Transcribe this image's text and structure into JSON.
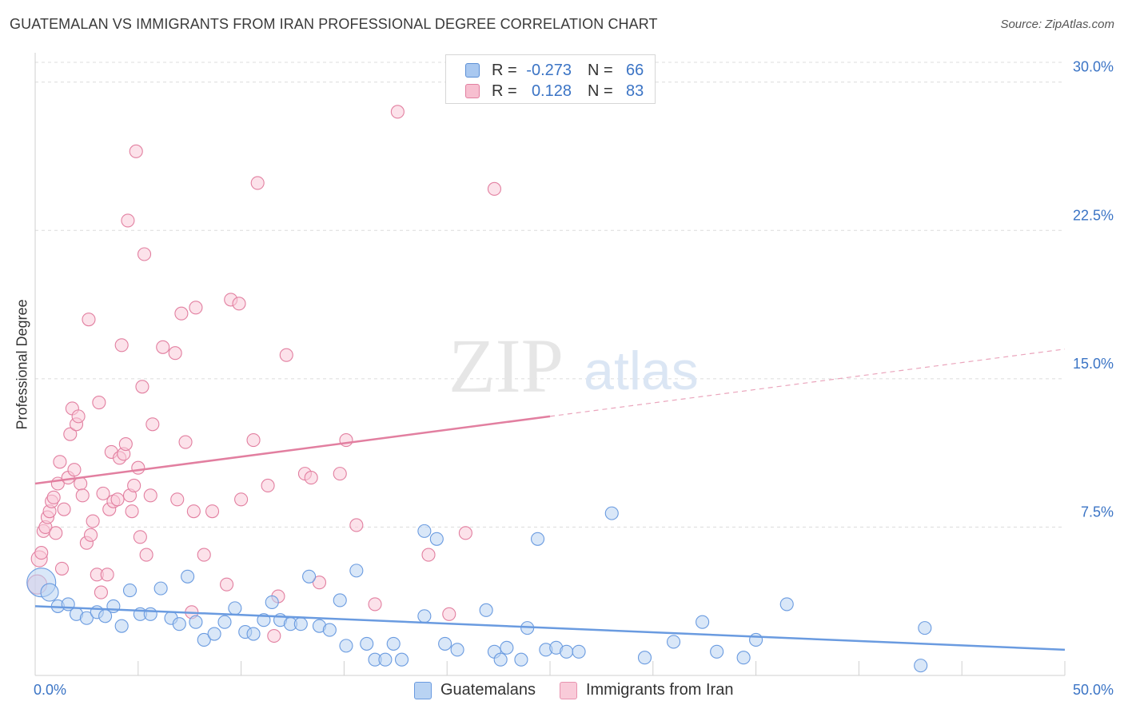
{
  "header": {
    "title": "GUATEMALAN VS IMMIGRANTS FROM IRAN PROFESSIONAL DEGREE CORRELATION CHART",
    "source": "Source: ZipAtlas.com"
  },
  "watermark": {
    "zip": "ZIP",
    "atlas": "atlas"
  },
  "legend": {
    "rows": [
      {
        "r_label": "R =",
        "r_value": "-0.273",
        "n_label": "N =",
        "n_value": "66",
        "color": "#a9c8f0",
        "border": "#5b8fd6"
      },
      {
        "r_label": "R =",
        "r_value": "0.128",
        "n_label": "N =",
        "n_value": "83",
        "color": "#f7bfd0",
        "border": "#e27fa0"
      }
    ]
  },
  "bottom_legend": {
    "items": [
      {
        "label": "Guatemalans",
        "color": "#b9d3f3",
        "border": "#6a9be0"
      },
      {
        "label": "Immigrants from Iran",
        "color": "#f9cbd9",
        "border": "#e893af"
      }
    ]
  },
  "chart_data": {
    "type": "scatter",
    "title": "GUATEMALAN VS IMMIGRANTS FROM IRAN PROFESSIONAL DEGREE CORRELATION CHART",
    "xlabel": "",
    "ylabel": "Professional Degree",
    "xlim": [
      0,
      50
    ],
    "ylim": [
      0,
      31
    ],
    "x_tick_labels": [
      {
        "value": 0,
        "label": "0.0%"
      },
      {
        "value": 50,
        "label": "50.0%"
      }
    ],
    "y_tick_labels": [
      {
        "value": 7.5,
        "label": "7.5%"
      },
      {
        "value": 15,
        "label": "15.0%"
      },
      {
        "value": 22.5,
        "label": "22.5%"
      },
      {
        "value": 30,
        "label": "30.0%"
      }
    ],
    "series": [
      {
        "name": "Guatemalans",
        "color": "#6a9be0",
        "fill": "#b9d3f3",
        "trend": {
          "x0": 0,
          "y0": 3.5,
          "x1": 50,
          "y1": 1.3,
          "solid_until": 50
        },
        "points": [
          [
            0.3,
            4.7,
            18
          ],
          [
            0.7,
            4.2,
            11
          ],
          [
            1.1,
            3.5,
            8
          ],
          [
            1.6,
            3.6,
            8
          ],
          [
            2.0,
            3.1,
            8
          ],
          [
            2.5,
            2.9,
            8
          ],
          [
            3.0,
            3.2,
            8
          ],
          [
            3.4,
            3.0,
            8
          ],
          [
            3.8,
            3.5,
            8
          ],
          [
            4.2,
            2.5,
            8
          ],
          [
            4.6,
            4.3,
            8
          ],
          [
            5.1,
            3.1,
            8
          ],
          [
            5.6,
            3.1,
            8
          ],
          [
            6.1,
            4.4,
            8
          ],
          [
            6.6,
            2.9,
            8
          ],
          [
            7.0,
            2.6,
            8
          ],
          [
            7.4,
            5.0,
            8
          ],
          [
            7.8,
            2.7,
            8
          ],
          [
            8.2,
            1.8,
            8
          ],
          [
            8.7,
            2.1,
            8
          ],
          [
            9.2,
            2.7,
            8
          ],
          [
            9.7,
            3.4,
            8
          ],
          [
            10.2,
            2.2,
            8
          ],
          [
            10.6,
            2.1,
            8
          ],
          [
            11.1,
            2.8,
            8
          ],
          [
            11.5,
            3.7,
            8
          ],
          [
            11.9,
            2.8,
            8
          ],
          [
            12.4,
            2.6,
            8
          ],
          [
            12.9,
            2.6,
            8
          ],
          [
            13.3,
            5.0,
            8
          ],
          [
            13.8,
            2.5,
            8
          ],
          [
            14.3,
            2.3,
            8
          ],
          [
            14.8,
            3.8,
            8
          ],
          [
            15.1,
            1.5,
            8
          ],
          [
            15.6,
            5.3,
            8
          ],
          [
            16.1,
            1.6,
            8
          ],
          [
            16.5,
            0.8,
            8
          ],
          [
            17.0,
            0.8,
            8
          ],
          [
            17.4,
            1.6,
            8
          ],
          [
            17.8,
            0.8,
            8
          ],
          [
            18.9,
            7.3,
            8
          ],
          [
            18.9,
            3.0,
            8
          ],
          [
            19.5,
            6.9,
            8
          ],
          [
            19.9,
            1.6,
            8
          ],
          [
            20.5,
            1.3,
            8
          ],
          [
            21.9,
            3.3,
            8
          ],
          [
            22.3,
            1.2,
            8
          ],
          [
            22.6,
            0.8,
            8
          ],
          [
            22.9,
            1.4,
            8
          ],
          [
            23.6,
            0.8,
            8
          ],
          [
            23.9,
            2.4,
            8
          ],
          [
            24.4,
            6.9,
            8
          ],
          [
            24.8,
            1.3,
            8
          ],
          [
            25.3,
            1.4,
            8
          ],
          [
            25.8,
            1.2,
            8
          ],
          [
            26.4,
            1.2,
            8
          ],
          [
            28.0,
            8.2,
            8
          ],
          [
            29.6,
            0.9,
            8
          ],
          [
            31.0,
            1.7,
            8
          ],
          [
            32.4,
            2.7,
            8
          ],
          [
            33.1,
            1.2,
            8
          ],
          [
            34.4,
            0.9,
            8
          ],
          [
            35.0,
            1.8,
            8
          ],
          [
            36.5,
            3.6,
            8
          ],
          [
            43.2,
            2.4,
            8
          ],
          [
            43.0,
            0.5,
            8
          ]
        ]
      },
      {
        "name": "Immigrants from Iran",
        "color": "#e27fa0",
        "fill": "#f9cbd9",
        "trend": {
          "x0": 0,
          "y0": 9.7,
          "x1": 50,
          "y1": 16.5,
          "solid_until": 25
        },
        "points": [
          [
            0.1,
            4.6,
            12
          ],
          [
            0.2,
            5.9,
            10
          ],
          [
            0.3,
            6.2,
            8
          ],
          [
            0.4,
            7.3,
            8
          ],
          [
            0.5,
            7.5,
            8
          ],
          [
            0.6,
            8.0,
            8
          ],
          [
            0.7,
            8.3,
            8
          ],
          [
            0.8,
            8.8,
            8
          ],
          [
            0.9,
            9.0,
            8
          ],
          [
            1.0,
            7.2,
            8
          ],
          [
            1.1,
            9.7,
            8
          ],
          [
            1.2,
            10.8,
            8
          ],
          [
            1.3,
            5.4,
            8
          ],
          [
            1.4,
            8.4,
            8
          ],
          [
            1.6,
            10.0,
            8
          ],
          [
            1.7,
            12.2,
            8
          ],
          [
            1.8,
            13.5,
            8
          ],
          [
            1.9,
            10.4,
            8
          ],
          [
            2.0,
            12.7,
            8
          ],
          [
            2.1,
            13.1,
            8
          ],
          [
            2.2,
            9.7,
            8
          ],
          [
            2.3,
            9.1,
            8
          ],
          [
            2.5,
            6.7,
            8
          ],
          [
            2.6,
            18.0,
            8
          ],
          [
            2.7,
            7.1,
            8
          ],
          [
            2.8,
            7.8,
            8
          ],
          [
            3.0,
            5.1,
            8
          ],
          [
            3.1,
            13.8,
            8
          ],
          [
            3.2,
            4.2,
            8
          ],
          [
            3.3,
            9.2,
            8
          ],
          [
            3.5,
            5.1,
            8
          ],
          [
            3.6,
            8.4,
            8
          ],
          [
            3.7,
            11.3,
            8
          ],
          [
            3.8,
            8.8,
            8
          ],
          [
            4.0,
            8.9,
            8
          ],
          [
            4.1,
            11.0,
            8
          ],
          [
            4.2,
            16.7,
            8
          ],
          [
            4.3,
            11.2,
            8
          ],
          [
            4.4,
            11.7,
            8
          ],
          [
            4.5,
            23.0,
            8
          ],
          [
            4.6,
            9.1,
            8
          ],
          [
            4.7,
            8.3,
            8
          ],
          [
            4.8,
            9.6,
            8
          ],
          [
            4.9,
            26.5,
            8
          ],
          [
            5.0,
            10.5,
            8
          ],
          [
            5.1,
            7.0,
            8
          ],
          [
            5.2,
            14.6,
            8
          ],
          [
            5.3,
            21.3,
            8
          ],
          [
            5.4,
            6.1,
            8
          ],
          [
            5.6,
            9.1,
            8
          ],
          [
            5.7,
            12.7,
            8
          ],
          [
            6.2,
            16.6,
            8
          ],
          [
            6.8,
            16.3,
            8
          ],
          [
            6.9,
            8.9,
            8
          ],
          [
            7.1,
            18.3,
            8
          ],
          [
            7.3,
            11.8,
            8
          ],
          [
            7.6,
            3.2,
            8
          ],
          [
            7.7,
            8.3,
            8
          ],
          [
            7.8,
            18.6,
            8
          ],
          [
            8.2,
            6.1,
            8
          ],
          [
            8.6,
            8.3,
            8
          ],
          [
            9.3,
            4.6,
            8
          ],
          [
            9.5,
            19.0,
            8
          ],
          [
            9.9,
            18.8,
            8
          ],
          [
            10.0,
            8.9,
            8
          ],
          [
            10.6,
            11.9,
            8
          ],
          [
            10.8,
            24.9,
            8
          ],
          [
            11.3,
            9.6,
            8
          ],
          [
            11.6,
            2.0,
            8
          ],
          [
            11.8,
            4.0,
            8
          ],
          [
            12.2,
            16.2,
            8
          ],
          [
            13.1,
            10.2,
            8
          ],
          [
            13.4,
            10.0,
            8
          ],
          [
            13.8,
            4.7,
            8
          ],
          [
            14.8,
            10.2,
            8
          ],
          [
            15.1,
            11.9,
            8
          ],
          [
            15.6,
            7.6,
            8
          ],
          [
            16.5,
            3.6,
            8
          ],
          [
            17.6,
            28.5,
            8
          ],
          [
            19.1,
            6.1,
            8
          ],
          [
            20.1,
            3.1,
            8
          ],
          [
            20.9,
            7.2,
            8
          ],
          [
            22.3,
            24.6,
            8
          ]
        ]
      }
    ]
  }
}
